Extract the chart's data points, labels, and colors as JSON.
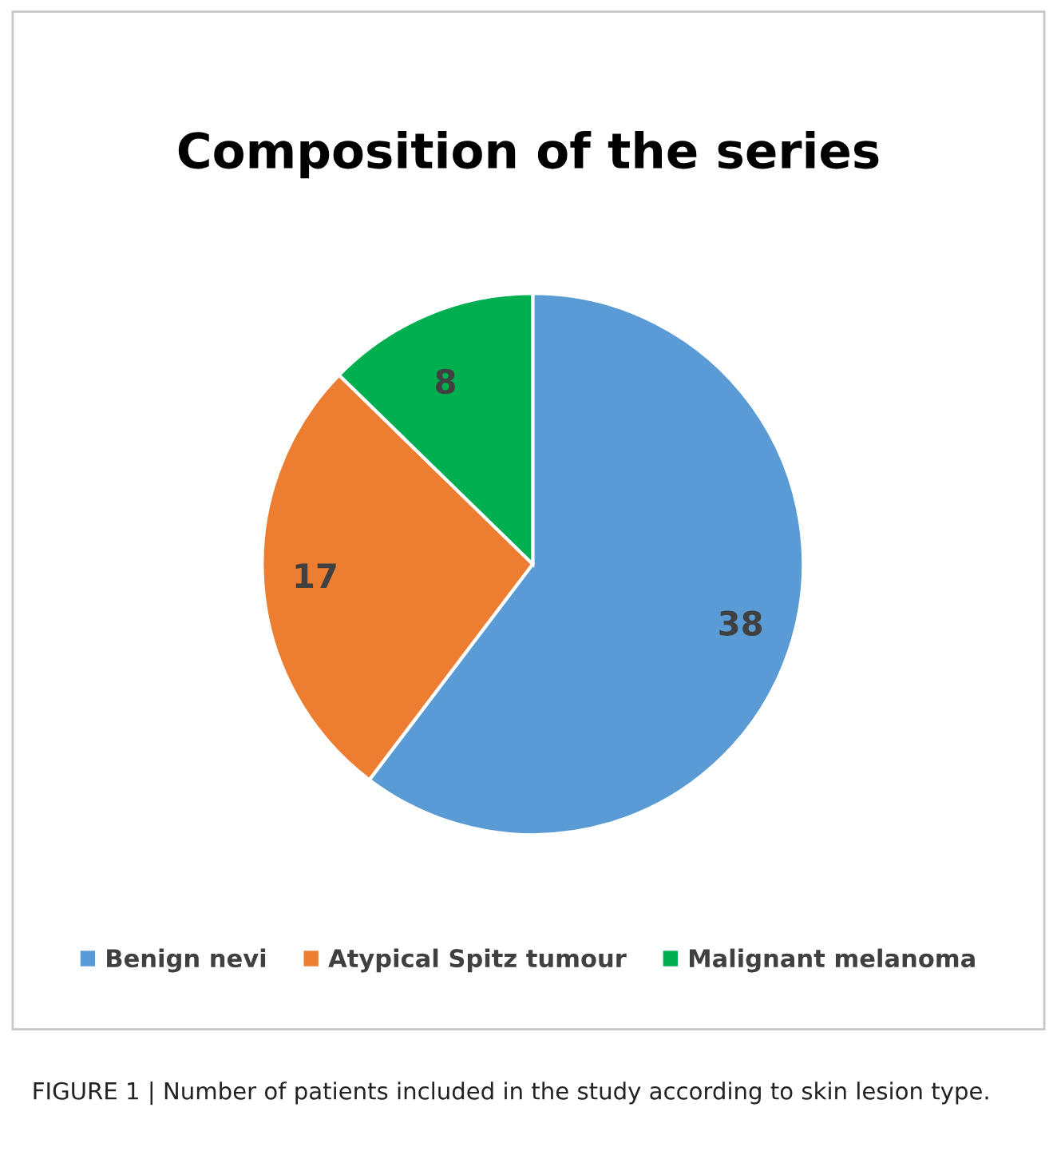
{
  "chart_data": {
    "type": "pie",
    "title": "Composition of the series",
    "categories": [
      "Benign nevi",
      "Atypical Spitz tumour",
      "Malignant melanoma"
    ],
    "values": [
      38,
      17,
      8
    ],
    "colors": [
      "#5b9bd5",
      "#ed7d31",
      "#00b050"
    ],
    "data_labels": true,
    "legend": "bottom",
    "annotations": [
      "FIGURE 1 | Number of patients included in the study according to skin lesion type."
    ]
  }
}
